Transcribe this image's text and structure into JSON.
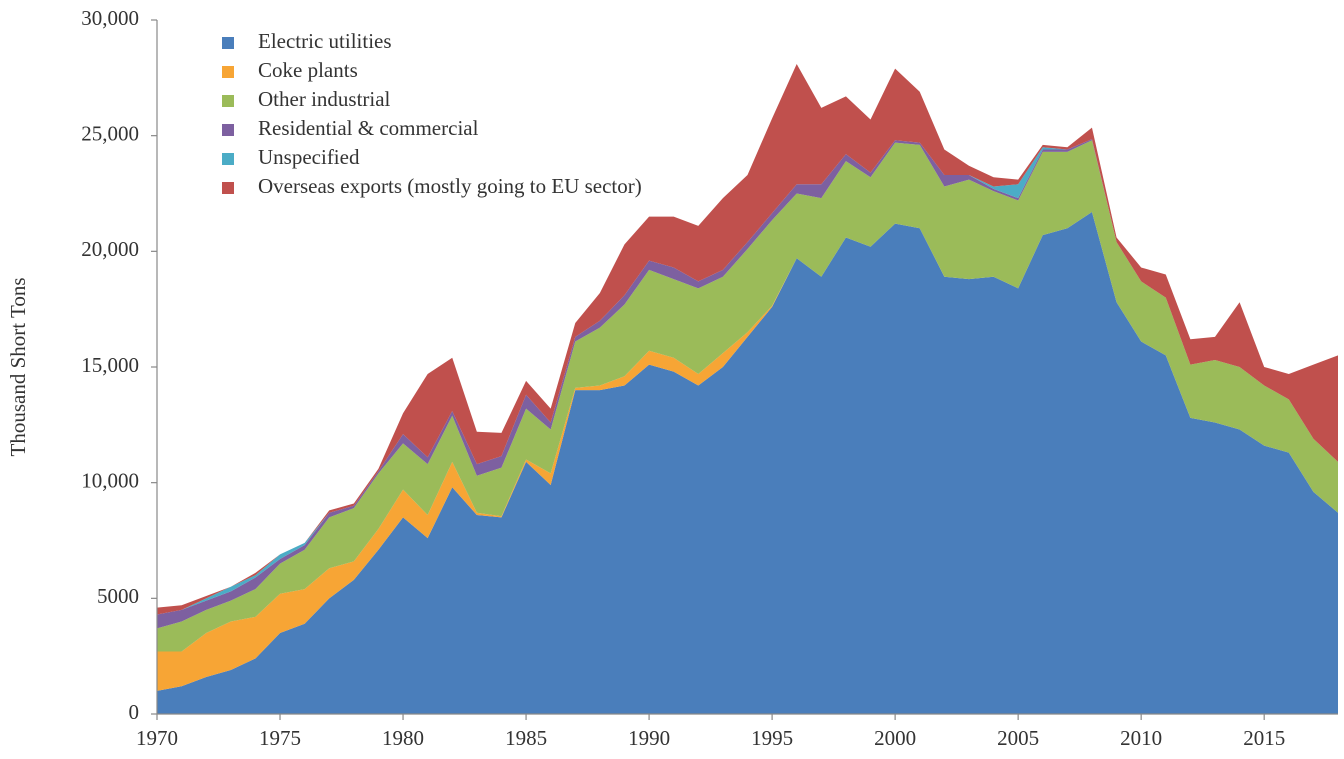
{
  "chart_data": {
    "type": "stacked_area",
    "y_axis_label": "Thousand Short Tons",
    "x": [
      1970,
      1971,
      1972,
      1973,
      1974,
      1975,
      1976,
      1977,
      1978,
      1979,
      1980,
      1981,
      1982,
      1983,
      1984,
      1985,
      1986,
      1987,
      1988,
      1989,
      1990,
      1991,
      1992,
      1993,
      1994,
      1995,
      1996,
      1997,
      1998,
      1999,
      2000,
      2001,
      2002,
      2003,
      2004,
      2005,
      2006,
      2007,
      2008,
      2009,
      2010,
      2011,
      2012,
      2013,
      2014,
      2015,
      2016,
      2017,
      2018
    ],
    "xlim": [
      1970,
      2018
    ],
    "xticks": [
      1970,
      1975,
      1980,
      1985,
      1990,
      1995,
      2000,
      2005,
      2010,
      2015
    ],
    "ylim": [
      0,
      30000
    ],
    "yticks": [
      0,
      5000,
      {
        "value": 10000,
        "label": "10,000"
      },
      {
        "value": 15000,
        "label": "15,000"
      },
      {
        "value": 20000,
        "label": "20,000"
      },
      {
        "value": 25000,
        "label": "25,000"
      },
      {
        "value": 30000,
        "label": "30,000"
      }
    ],
    "legend": "upper left",
    "series": [
      {
        "name": "Electric utilities",
        "color": "#4a7ebb",
        "values": [
          1000,
          1200,
          1600,
          1900,
          2400,
          3500,
          3900,
          5000,
          5800,
          7100,
          8500,
          7600,
          9800,
          8600,
          8500,
          10900,
          9900,
          14000,
          14000,
          14200,
          15100,
          14800,
          14200,
          15000,
          16300,
          17600,
          19700,
          18900,
          20600,
          20200,
          21200,
          21000,
          18900,
          18800,
          18900,
          18400,
          20700,
          21000,
          21700,
          17800,
          16100,
          15500,
          12800,
          12600,
          12300,
          11600,
          11300,
          9600,
          8700
        ]
      },
      {
        "name": "Coke plants",
        "color": "#f7a535",
        "values": [
          1700,
          1500,
          1900,
          2100,
          1800,
          1700,
          1500,
          1300,
          800,
          900,
          1200,
          1000,
          1100,
          100,
          50,
          100,
          500,
          100,
          200,
          400,
          600,
          600,
          500,
          600,
          200,
          50,
          0,
          0,
          0,
          0,
          0,
          0,
          0,
          0,
          0,
          0,
          0,
          0,
          0,
          0,
          0,
          0,
          0,
          0,
          0,
          0,
          0,
          0,
          0
        ]
      },
      {
        "name": "Other industrial",
        "color": "#9bbb59",
        "values": [
          1000,
          1300,
          1000,
          900,
          1200,
          1300,
          1700,
          2200,
          2300,
          2400,
          2000,
          2200,
          2000,
          1600,
          2100,
          2200,
          1900,
          2000,
          2500,
          3100,
          3500,
          3400,
          3700,
          3300,
          3600,
          3700,
          2800,
          3400,
          3300,
          3000,
          3500,
          3600,
          3900,
          4300,
          3700,
          3800,
          3600,
          3300,
          3100,
          2600,
          2600,
          2500,
          2300,
          2700,
          2700,
          2600,
          2300,
          2300,
          2200
        ]
      },
      {
        "name": "Residential & commercial",
        "color": "#7d60a0",
        "values": [
          600,
          500,
          400,
          400,
          500,
          200,
          200,
          200,
          100,
          100,
          400,
          300,
          200,
          500,
          500,
          600,
          300,
          200,
          300,
          400,
          400,
          500,
          300,
          300,
          300,
          300,
          400,
          600,
          300,
          200,
          100,
          100,
          500,
          200,
          100,
          100,
          100,
          100,
          50,
          0,
          0,
          0,
          0,
          0,
          0,
          0,
          0,
          0,
          0
        ]
      },
      {
        "name": "Unspecified",
        "color": "#4bacc6",
        "values": [
          0,
          0,
          100,
          200,
          100,
          200,
          100,
          0,
          0,
          0,
          0,
          0,
          0,
          0,
          0,
          0,
          0,
          0,
          0,
          0,
          0,
          0,
          0,
          0,
          0,
          0,
          0,
          0,
          0,
          0,
          0,
          0,
          0,
          0,
          100,
          600,
          100,
          0,
          0,
          0,
          0,
          0,
          0,
          0,
          0,
          0,
          0,
          0,
          0
        ]
      },
      {
        "name": "Overseas exports (mostly going to EU sector)",
        "color": "#c0504d",
        "values": [
          300,
          200,
          100,
          0,
          100,
          0,
          0,
          100,
          100,
          100,
          900,
          3600,
          2300,
          1400,
          1000,
          600,
          600,
          600,
          1200,
          2200,
          1900,
          2200,
          2400,
          3100,
          2900,
          4100,
          5200,
          3300,
          2500,
          2300,
          3100,
          2200,
          1100,
          400,
          400,
          200,
          100,
          100,
          500,
          200,
          600,
          1000,
          1100,
          1000,
          2800,
          800,
          1100,
          3200,
          4600
        ]
      }
    ]
  }
}
